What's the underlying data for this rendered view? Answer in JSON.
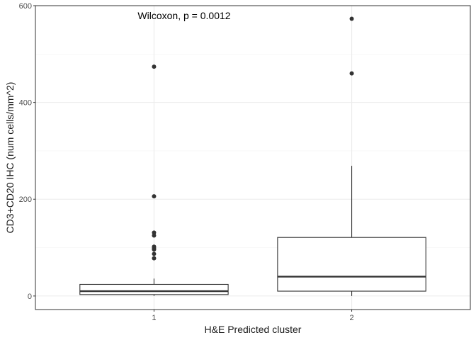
{
  "chart_data": {
    "type": "boxplot",
    "xlabel": "H&E Predicted cluster",
    "ylabel": "CD3+CD20 IHC (num cells/mm^2)",
    "annotation": "Wilcoxon, p = 0.0012",
    "categories": [
      "1",
      "2"
    ],
    "ylim": [
      -28,
      600
    ],
    "y_ticks": [
      0,
      200,
      400,
      600
    ],
    "y_tick_labels": [
      "0",
      "200",
      "400",
      "600"
    ],
    "grid": true,
    "theme": "bw",
    "boxes": [
      {
        "category": "1",
        "whisker_low": 0,
        "q1": 3,
        "median": 10,
        "q3": 24,
        "whisker_high": 36,
        "outliers": [
          474,
          206,
          131,
          125,
          102,
          99,
          96,
          87,
          78
        ]
      },
      {
        "category": "2",
        "whisker_low": 0,
        "q1": 10,
        "median": 40,
        "q3": 121,
        "whisker_high": 269,
        "outliers": [
          573,
          460
        ]
      }
    ],
    "colors": {
      "box_stroke": "#333333",
      "point": "#333333",
      "grid_major": "#ebebeb",
      "grid_minor": "#f4f4f4",
      "panel_border": "#333333"
    }
  }
}
